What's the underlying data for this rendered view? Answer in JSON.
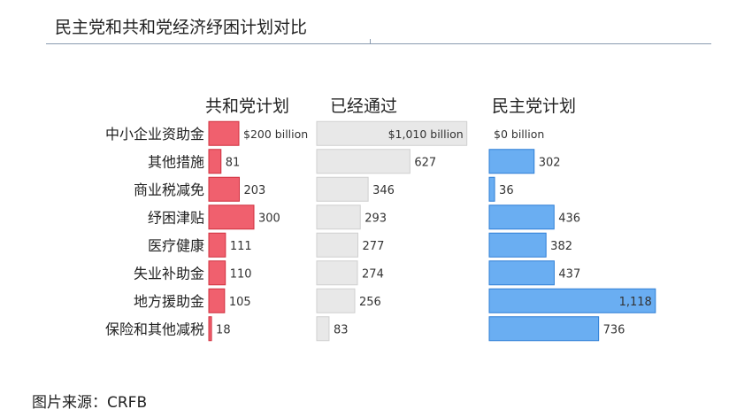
{
  "title": "民主党和共和党经济纾困计划对比",
  "source": "图片来源：CRFB",
  "chart_data": {
    "type": "bar",
    "categories": [
      "中小企业资助金",
      "其他措施",
      "商业税减免",
      "纾困津贴",
      "医疗健康",
      "失业补助金",
      "地方援助金",
      "保险和其他减税"
    ],
    "series": [
      {
        "name": "共和党计划",
        "color": "#f0606e",
        "values": [
          200,
          81,
          203,
          300,
          111,
          110,
          105,
          18
        ],
        "labels": [
          "$200 billion",
          "81",
          "203",
          "300",
          "111",
          "110",
          "105",
          "18"
        ]
      },
      {
        "name": "已经通过",
        "color": "#e8e8e8",
        "values": [
          1010,
          627,
          346,
          293,
          277,
          274,
          256,
          83
        ],
        "labels": [
          "$1,010 billion",
          "627",
          "346",
          "293",
          "277",
          "274",
          "256",
          "83"
        ]
      },
      {
        "name": "民主党计划",
        "color": "#6aaef2",
        "values": [
          0,
          302,
          36,
          436,
          382,
          437,
          1118,
          736
        ],
        "labels": [
          "$0 billion",
          "302",
          "36",
          "436",
          "382",
          "437",
          "1,118",
          "736"
        ]
      }
    ]
  }
}
